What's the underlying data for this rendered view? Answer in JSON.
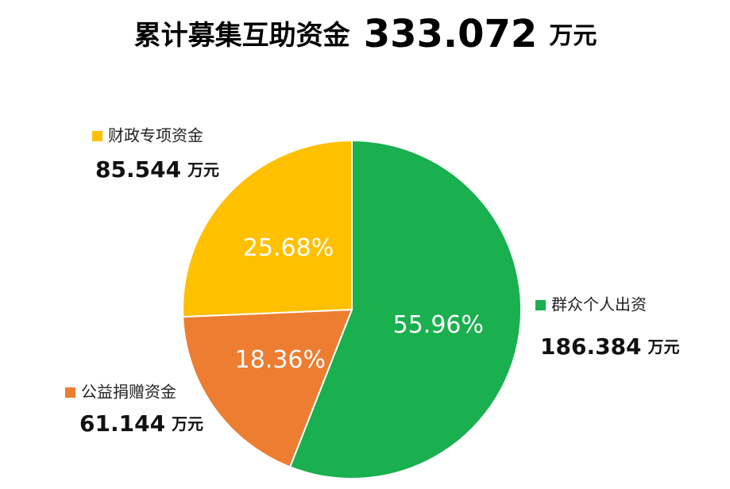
{
  "chart_data": {
    "type": "pie",
    "title": "累计募集互助资金",
    "total": 333.072,
    "unit": "万元",
    "categories": [
      "群众个人出资",
      "公益捐赠资金",
      "财政专项资金"
    ],
    "values": [
      55.96,
      18.36,
      25.68
    ],
    "value_labels": [
      "55.96%",
      "18.36%",
      "25.68%"
    ],
    "amounts": [
      186.384,
      61.144,
      85.544
    ],
    "colors": [
      "#1aaf4f",
      "#ed7d31",
      "#ffc000"
    ]
  }
}
